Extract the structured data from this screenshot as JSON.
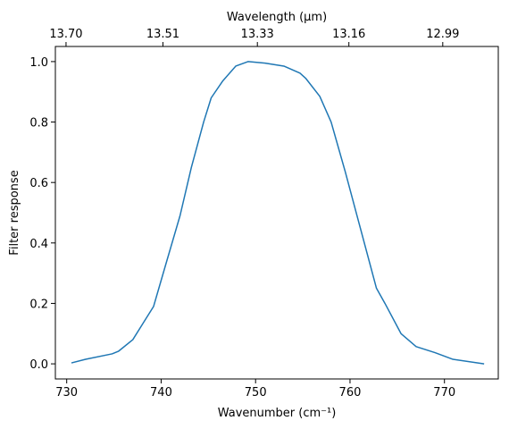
{
  "chart_data": {
    "type": "line",
    "xlabel": "Wavenumber (cm⁻¹)",
    "ylabel": "Filter response",
    "top_xlabel": "Wavelength (μm)",
    "xlim": [
      728.8,
      775.7
    ],
    "ylim": [
      -0.05,
      1.05
    ],
    "x_ticks": [
      730,
      740,
      750,
      760,
      770
    ],
    "y_ticks": [
      0.0,
      0.2,
      0.4,
      0.6,
      0.8,
      1.0
    ],
    "x_tick_labels": [
      "730",
      "740",
      "750",
      "760",
      "770"
    ],
    "y_tick_labels": [
      "0.0",
      "0.2",
      "0.4",
      "0.6",
      "0.8",
      "1.0"
    ],
    "top_ticks": [
      {
        "wavenumber": 729.93,
        "label": "13.70"
      },
      {
        "wavenumber": 740.19,
        "label": "13.51"
      },
      {
        "wavenumber": 750.19,
        "label": "13.33"
      },
      {
        "wavenumber": 759.88,
        "label": "13.16"
      },
      {
        "wavenumber": 769.82,
        "label": "12.99"
      }
    ],
    "grid": false,
    "legend": "none",
    "series": [
      {
        "color": "#1f77b4",
        "x": [
          730.5,
          732.0,
          734.8,
          735.5,
          737.0,
          738.0,
          739.2,
          740.5,
          742.0,
          743.2,
          744.5,
          745.3,
          746.5,
          747.9,
          749.2,
          751.0,
          753.0,
          754.7,
          755.3,
          756.8,
          758.0,
          759.5,
          761.0,
          762.8,
          763.7,
          765.4,
          767.0,
          769.0,
          770.9,
          774.2
        ],
        "y": [
          0.003,
          0.015,
          0.033,
          0.042,
          0.08,
          0.13,
          0.19,
          0.33,
          0.49,
          0.65,
          0.8,
          0.88,
          0.935,
          0.985,
          1.0,
          0.995,
          0.985,
          0.962,
          0.945,
          0.885,
          0.8,
          0.635,
          0.46,
          0.25,
          0.2,
          0.1,
          0.057,
          0.037,
          0.015,
          0.0
        ]
      }
    ]
  }
}
